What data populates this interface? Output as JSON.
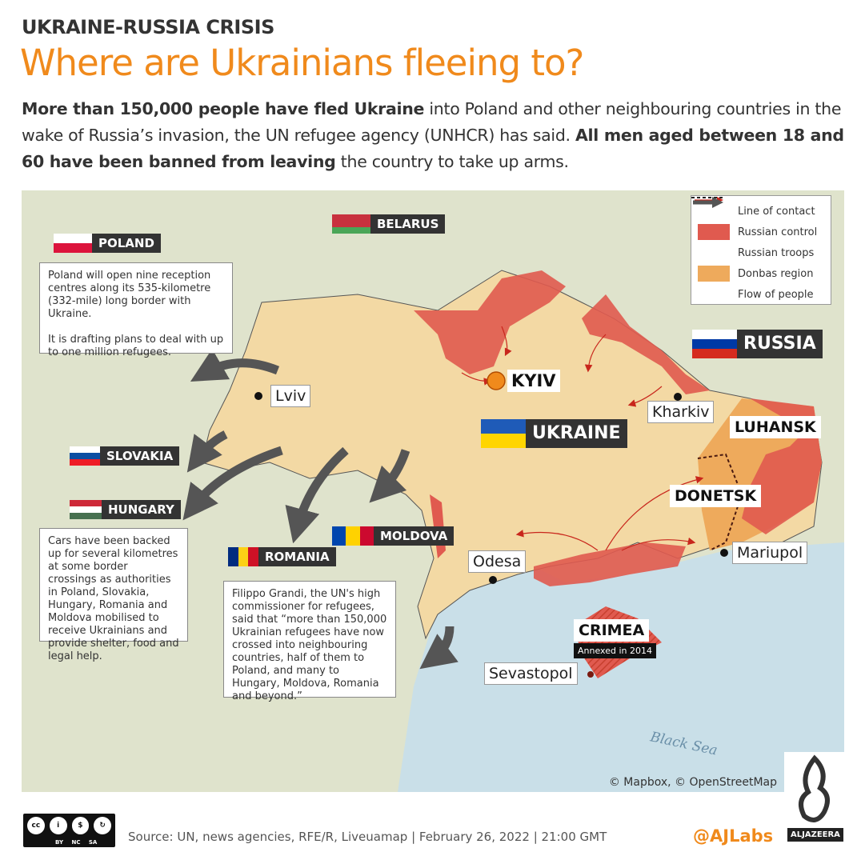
{
  "header": {
    "kicker": "UKRAINE-RUSSIA CRISIS",
    "title": "Where are Ukrainians fleeing to?",
    "lede": [
      {
        "text": "More than 150,000 people have fled Ukraine",
        "bold": true
      },
      {
        "text": " into Poland and other neighbouring countries in the wake of Russia’s invasion, the UN refugee agency (UNHCR) has said. ",
        "bold": false
      },
      {
        "text": "All men aged between 18 and 60 have been banned from leaving",
        "bold": true
      },
      {
        "text": " the country to take up arms.",
        "bold": false
      }
    ]
  },
  "legend": {
    "items": [
      {
        "label": "Line of contact",
        "symbol": "dashed-line"
      },
      {
        "label": "Russian control",
        "symbol": "swatch",
        "color": "#e05a4f"
      },
      {
        "label": "Russian troops",
        "symbol": "red-arrow",
        "color": "#c8261c"
      },
      {
        "label": "Donbas region",
        "symbol": "swatch",
        "color": "#eeaa5c"
      },
      {
        "label": "Flow of people",
        "symbol": "grey-arrow",
        "color": "#555555"
      }
    ]
  },
  "countries": {
    "belarus": "BELARUS",
    "poland": "POLAND",
    "russia": "RUSSIA",
    "ukraine": "UKRAINE",
    "slovakia": "SLOVAKIA",
    "hungary": "HUNGARY",
    "romania": "ROMANIA",
    "moldova": "MOLDOVA"
  },
  "cities": {
    "lviv": "Lviv",
    "kyiv": "KYIV",
    "kharkiv": "Kharkiv",
    "odesa": "Odesa",
    "mariupol": "Mariupol",
    "sevastopol": "Sevastopol"
  },
  "regions": {
    "luhansk": "LUHANSK",
    "donetsk": "DONETSK",
    "crimea": "CRIMEA",
    "crimea_note": "Annexed in 2014"
  },
  "notes": {
    "poland": "Poland will open nine reception centres along its 535-kilometre (332-mile) long border with Ukraine.\n\nIt is drafting plans to deal with up to one million refugees.",
    "borders": "Cars have been backed up for several kilometres at some border crossings as authorities in Poland, Slovakia, Hungary, Romania and Moldova mobilised to receive Ukrainians and provide shelter, food and legal help.",
    "grandi": "Filippo Grandi, the UN's high commissioner for refugees, said that “more than 150,000 Ukrainian refugees have now crossed into neighbouring countries, half of them to Poland, and many to Hungary, Moldova, Romania and beyond.”"
  },
  "map": {
    "sea_label": "Black Sea",
    "credit": "© Mapbox, © OpenStreetMap"
  },
  "footer": {
    "license": "BY NC SA",
    "source": "Source: UN, news agencies, RFE/R, Liveuamap | February 26, 2022 | 21:00 GMT",
    "handle": "@AJLabs",
    "brand": "ALJAZEERA"
  },
  "colors": {
    "accent": "#f08a1c",
    "russian_control": "#e05a4f",
    "donbas": "#eeaa5c",
    "ukraine": "#f3d9a4",
    "sea": "#c9dfe8",
    "land": "#dfe3cc"
  }
}
